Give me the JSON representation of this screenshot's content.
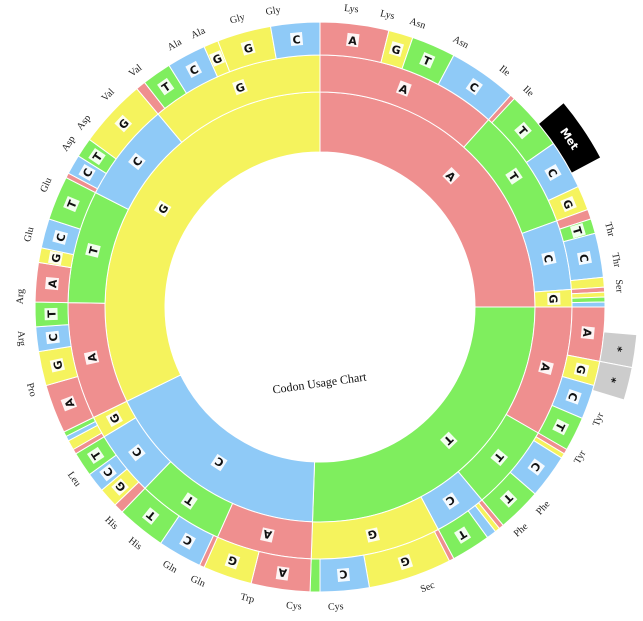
{
  "chart_data": {
    "type": "sunburst",
    "title": "Codon Usage Chart",
    "colors": {
      "A": "#ef8f8f",
      "T": "#7fee5e",
      "G": "#f5f35d",
      "C": "#8fcaf7",
      "stop": "#cccccc",
      "start": "#000000"
    },
    "start_angle_deg": 0,
    "levels": [
      {
        "name": "first",
        "bases": [
          [
            "A",
            90
          ],
          [
            "T",
            92
          ],
          [
            "C",
            62
          ],
          [
            "G",
            116
          ]
        ]
      },
      {
        "name": "second",
        "bases": [
          [
            "A",
            42
          ],
          [
            "T",
            28
          ],
          [
            "C",
            16
          ],
          [
            "G",
            4
          ],
          [
            "A",
            30
          ],
          [
            "T",
            20
          ],
          [
            "C",
            12
          ],
          [
            "G",
            30
          ],
          [
            "A",
            22
          ],
          [
            "T",
            20
          ],
          [
            "C",
            15
          ],
          [
            "G",
            5
          ],
          [
            "A",
            27
          ],
          [
            "T",
            26
          ],
          [
            "C",
            23
          ],
          [
            "G",
            40
          ]
        ]
      },
      {
        "name": "third",
        "bases": [
          [
            "A",
            14
          ],
          [
            "G",
            5
          ],
          [
            "T",
            9
          ],
          [
            "C",
            14
          ],
          [
            "A",
            1
          ],
          [
            "T",
            12
          ],
          [
            "C",
            10
          ],
          [
            "G",
            5
          ],
          [
            "A",
            2
          ],
          [
            "T",
            3
          ],
          [
            "C",
            9
          ],
          [
            "G",
            2
          ],
          [
            "A",
            1
          ],
          [
            "G",
            1
          ],
          [
            "T",
            1
          ],
          [
            "C",
            1
          ],
          [
            "A",
            11
          ],
          [
            "G",
            5
          ],
          [
            "C",
            7
          ],
          [
            "T",
            7
          ],
          [
            "A",
            1
          ],
          [
            "G",
            1
          ],
          [
            "C",
            9
          ],
          [
            "T",
            9
          ],
          [
            "A",
            1
          ],
          [
            "G",
            1
          ],
          [
            "C",
            2
          ],
          [
            "T",
            8
          ],
          [
            "A",
            1
          ],
          [
            "G",
            17
          ],
          [
            "C",
            10
          ],
          [
            "T",
            2
          ],
          [
            "A",
            12
          ],
          [
            "G",
            10
          ],
          [
            "A",
            1
          ],
          [
            "C",
            9
          ],
          [
            "T",
            10
          ],
          [
            "A",
            2
          ],
          [
            "G",
            4
          ],
          [
            "C",
            4
          ],
          [
            "T",
            5
          ],
          [
            "A",
            1
          ],
          [
            "G",
            2
          ],
          [
            "C",
            1
          ],
          [
            "T",
            1
          ],
          [
            "A",
            10
          ],
          [
            "G",
            7
          ],
          [
            "C",
            5
          ],
          [
            "T",
            5
          ],
          [
            "A",
            8
          ],
          [
            "G",
            3
          ],
          [
            "C",
            6
          ],
          [
            "T",
            9
          ],
          [
            "A",
            1
          ],
          [
            "C",
            4
          ],
          [
            "T",
            4
          ],
          [
            "G",
            14
          ],
          [
            "A",
            2
          ],
          [
            "T",
            6
          ],
          [
            "C",
            8
          ],
          [
            "G",
            3
          ],
          [
            "G",
            11
          ],
          [
            "C",
            10
          ]
        ]
      }
    ],
    "outer_labels": [
      {
        "text": "Lys",
        "angle": 6
      },
      {
        "text": "Lys",
        "angle": 13
      },
      {
        "text": "Asn",
        "angle": 19
      },
      {
        "text": "Asn",
        "angle": 28
      },
      {
        "text": "Ile",
        "angle": 38
      },
      {
        "text": "Ile",
        "angle": 44
      },
      {
        "text": "Thr",
        "angle": 75
      },
      {
        "text": "Thr",
        "angle": 81
      },
      {
        "text": "Ser",
        "angle": 86
      },
      {
        "text": "Tyr",
        "angle": 112
      },
      {
        "text": "Tyr",
        "angle": 120
      },
      {
        "text": "Phe",
        "angle": 132
      },
      {
        "text": "Phe",
        "angle": 138
      },
      {
        "text": "Sec",
        "angle": 159
      },
      {
        "text": "Cys",
        "angle": 177
      },
      {
        "text": "Cys",
        "angle": 185
      },
      {
        "text": "Trp",
        "angle": 194
      },
      {
        "text": "Gln",
        "angle": 204
      },
      {
        "text": "Gln",
        "angle": 210
      },
      {
        "text": "His",
        "angle": 218
      },
      {
        "text": "His",
        "angle": 224
      },
      {
        "text": "Leu",
        "angle": 235
      },
      {
        "text": "Pro",
        "angle": 254
      },
      {
        "text": "Arg",
        "angle": 264
      },
      {
        "text": "Arg",
        "angle": 272
      },
      {
        "text": "Glu",
        "angle": 284
      },
      {
        "text": "Glu",
        "angle": 294
      },
      {
        "text": "Asp",
        "angle": 303
      },
      {
        "text": "Asp",
        "angle": 308
      },
      {
        "text": "Val",
        "angle": 315
      },
      {
        "text": "Val",
        "angle": 322
      },
      {
        "text": "Ala",
        "angle": 331
      },
      {
        "text": "Ala",
        "angle": 336
      },
      {
        "text": "Gly",
        "angle": 344
      },
      {
        "text": "Gly",
        "angle": 351
      }
    ],
    "special": [
      {
        "label": "Met",
        "start": 50,
        "end": 62,
        "type": "start"
      },
      {
        "label": "*",
        "start": 95,
        "end": 101,
        "type": "stop"
      },
      {
        "label": "*",
        "start": 101,
        "end": 107,
        "type": "stop"
      }
    ]
  }
}
